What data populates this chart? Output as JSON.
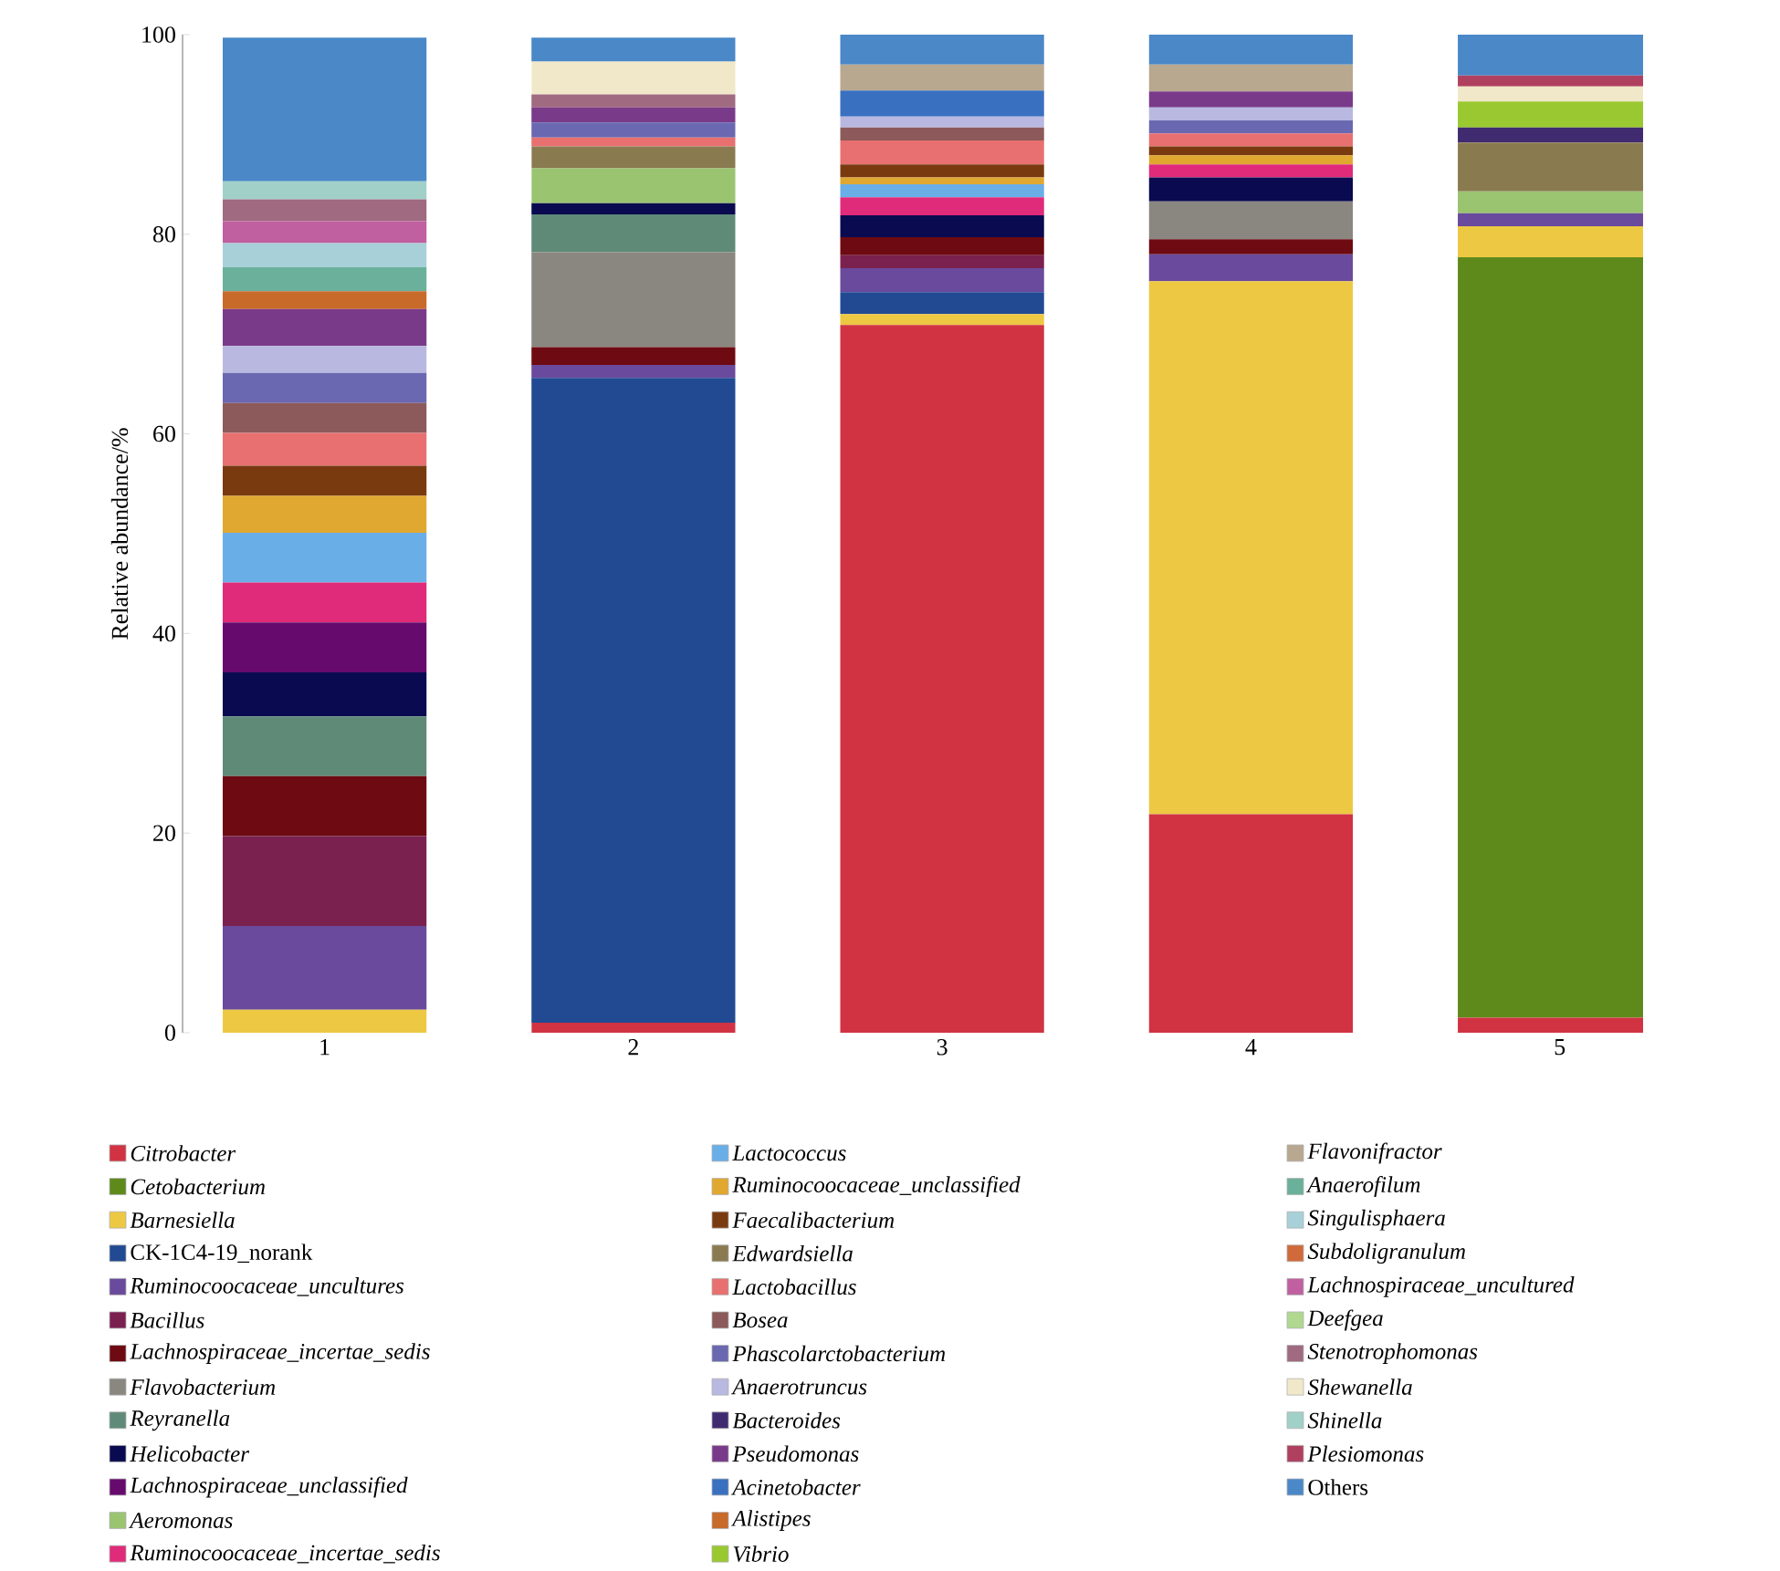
{
  "chart_data": {
    "type": "bar",
    "stacked": true,
    "ylabel": "Relative abundance/%",
    "categories": [
      "1",
      "2",
      "3",
      "4",
      "5"
    ],
    "ylim": [
      0,
      100
    ],
    "yticks": [
      0,
      20,
      40,
      60,
      80,
      100
    ],
    "legend": "bottom",
    "series": [
      {
        "name": "*Citrobacter*",
        "color": "#d13342",
        "values": [
          0,
          1,
          70.9,
          21.9,
          1.5
        ]
      },
      {
        "name": "*Cetobacterium*",
        "color": "#5e8a1c",
        "values": [
          0,
          0,
          0,
          0,
          76.2
        ]
      },
      {
        "name": "*Barnesiella*",
        "color": "#edc843",
        "values": [
          2.3,
          0,
          1.1,
          53.4,
          3.1
        ]
      },
      {
        "name": "CK-1C4-19_norank",
        "color": "#214a93",
        "values": [
          0,
          64.6,
          2.2,
          0,
          0
        ]
      },
      {
        "name": "*Ruminocoocaceae_uncultures*",
        "color": "#6a4a9c",
        "values": [
          8.4,
          1.3,
          2.4,
          2.7,
          1.3
        ]
      },
      {
        "name": "*Bacillus*",
        "color": "#7a2150",
        "values": [
          9,
          0,
          1.3,
          0,
          0
        ]
      },
      {
        "name": "*Lachnospiraceae_incertae_sedis*",
        "color": "#6e0a12",
        "values": [
          6,
          1.8,
          1.8,
          1.5,
          0
        ]
      },
      {
        "name": "*Flavobacterium*",
        "color": "#8a8680",
        "values": [
          0,
          9.5,
          0,
          3.8,
          0
        ]
      },
      {
        "name": "*Reyranella*",
        "color": "#5f8a78",
        "values": [
          6,
          3.8,
          0,
          0,
          0
        ]
      },
      {
        "name": "*Helicobacter*",
        "color": "#0a0a50",
        "values": [
          4.4,
          1.1,
          2.2,
          2.4,
          0
        ]
      },
      {
        "name": "*Lachnospiraceae_unclassified*",
        "color": "#660a6e",
        "values": [
          5,
          0,
          0,
          0,
          0
        ]
      },
      {
        "name": "*Aeromonas*",
        "color": "#9ac470",
        "values": [
          0,
          3.5,
          0,
          0,
          2.2
        ]
      },
      {
        "name": "*Ruminocoocaceae_incertae_sedis*",
        "color": "#e02a7a",
        "values": [
          4,
          0,
          1.8,
          1.3,
          0
        ]
      },
      {
        "name": "*Lactococcus*",
        "color": "#6aaee8",
        "values": [
          5,
          0,
          1.3,
          0,
          0
        ]
      },
      {
        "name": "*Ruminocoocaceae_unclassified*",
        "color": "#e0a830",
        "values": [
          3.7,
          0,
          0.7,
          0.9,
          0
        ]
      },
      {
        "name": "*Faecalibacterium*",
        "color": "#7a3a10",
        "values": [
          3,
          0,
          1.3,
          0.9,
          0
        ]
      },
      {
        "name": "*Edwardsiella*",
        "color": "#8a7a50",
        "values": [
          0,
          2.2,
          0,
          0,
          4.9
        ]
      },
      {
        "name": "*Lactobacillus*",
        "color": "#e87070",
        "values": [
          3.3,
          0.9,
          2.4,
          1.3,
          0
        ]
      },
      {
        "name": "*Bosea*",
        "color": "#8c5a5a",
        "values": [
          3,
          0,
          1.3,
          0,
          0
        ]
      },
      {
        "name": "*Phascolarctobacterium*",
        "color": "#6a68b0",
        "values": [
          3,
          1.5,
          0,
          1.3,
          0
        ]
      },
      {
        "name": "*Anaerotruncus*",
        "color": "#b8b8e0",
        "values": [
          2.7,
          0,
          1.1,
          1.3,
          0
        ]
      },
      {
        "name": "*Bacteroides*",
        "color": "#402a70",
        "values": [
          0,
          0,
          0,
          0,
          1.5
        ]
      },
      {
        "name": "*Pseudomonas*",
        "color": "#7a3a8a",
        "values": [
          3.7,
          1.5,
          0,
          1.6,
          0
        ]
      },
      {
        "name": "*Acinetobacter*",
        "color": "#3a70c0",
        "values": [
          0,
          0,
          2.6,
          0,
          0
        ]
      },
      {
        "name": "*Alistipes*",
        "color": "#c86a2a",
        "values": [
          1.8,
          0,
          0,
          0,
          0
        ]
      },
      {
        "name": "*Vibrio*",
        "color": "#9ac830",
        "values": [
          0,
          0,
          0,
          0,
          2.6
        ]
      },
      {
        "name": "*Flavonifractor*",
        "color": "#b8a890",
        "values": [
          0,
          0,
          2.6,
          2.7,
          0
        ]
      },
      {
        "name": "*Anaerofilum*",
        "color": "#6ab09a",
        "values": [
          2.4,
          0,
          0,
          0,
          0
        ]
      },
      {
        "name": "*Singulisphaera*",
        "color": "#a8d0d8",
        "values": [
          2.4,
          0,
          0,
          0,
          0
        ]
      },
      {
        "name": "*Subdoligranulum*",
        "color": "#d06a3a",
        "values": [
          0,
          0,
          0,
          0,
          0
        ]
      },
      {
        "name": "*Lachnospiraceae_uncultured*",
        "color": "#c060a0",
        "values": [
          2.2,
          0,
          0,
          0,
          0
        ]
      },
      {
        "name": "*Deefgea*",
        "color": "#b0d890",
        "values": [
          0,
          0,
          0,
          0,
          0
        ]
      },
      {
        "name": "*Stenotrophomonas*",
        "color": "#a06a80",
        "values": [
          2.2,
          1.3,
          0,
          0,
          0
        ]
      },
      {
        "name": "*Shewanella*",
        "color": "#f0e8c8",
        "values": [
          0,
          3.3,
          0,
          0,
          1.5
        ]
      },
      {
        "name": "*Shinella*",
        "color": "#a0d0c8",
        "values": [
          1.8,
          0,
          0,
          0,
          0
        ]
      },
      {
        "name": "*Plesiomonas*",
        "color": "#b04060",
        "values": [
          0,
          0,
          0,
          0,
          1.1
        ]
      },
      {
        "name": "Others",
        "color": "#4a88c8",
        "values": [
          14.4,
          2.4,
          3.1,
          3.1,
          4.1
        ]
      }
    ]
  }
}
